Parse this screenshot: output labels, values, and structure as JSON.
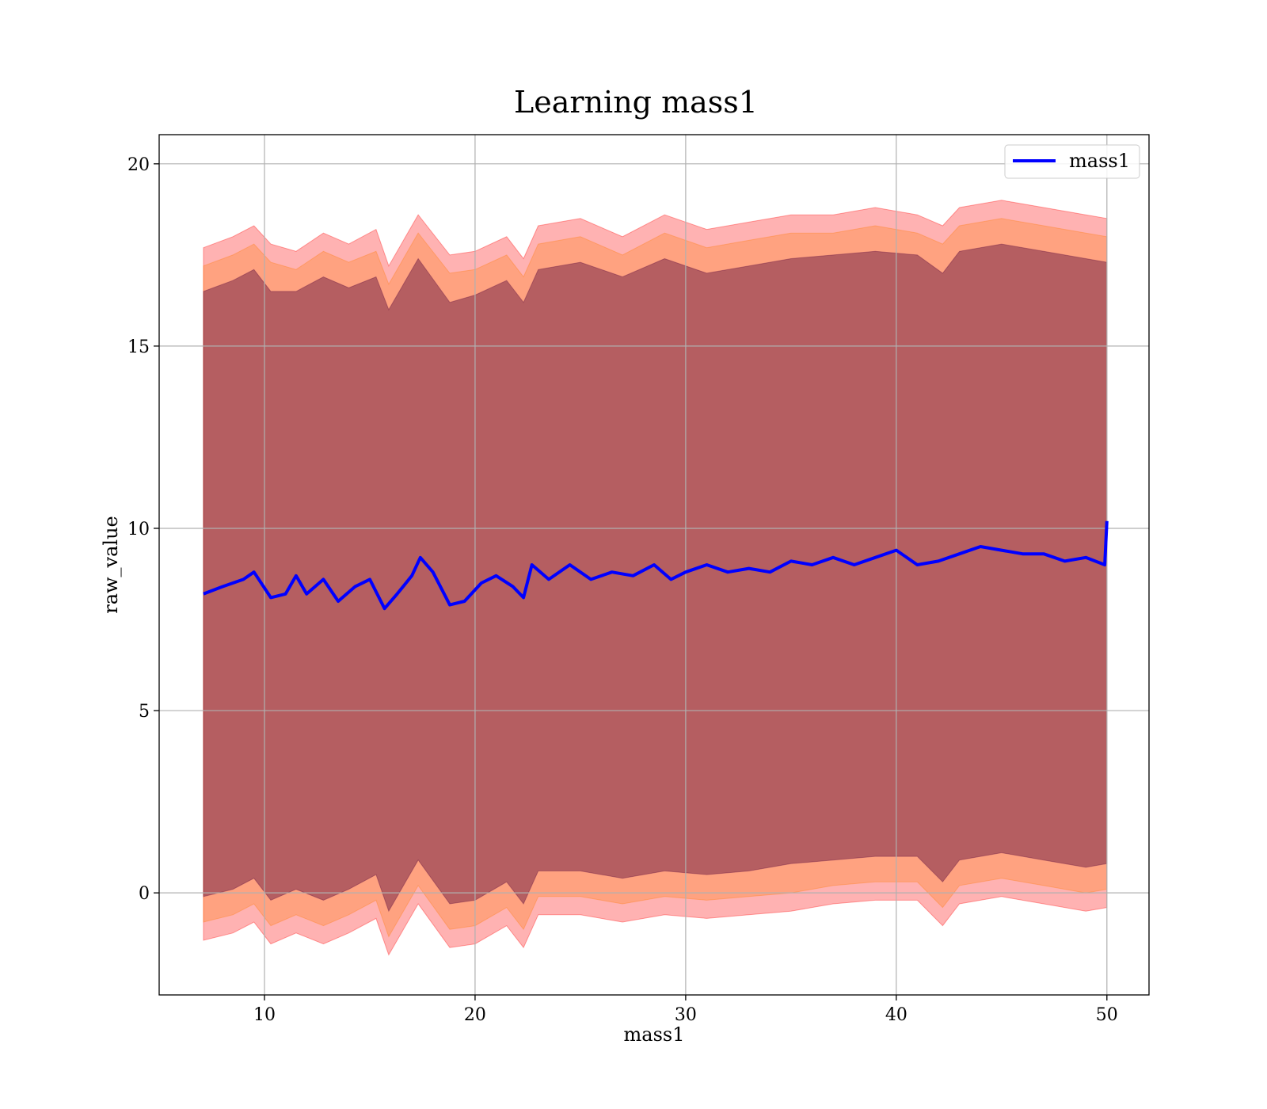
{
  "chart_data": {
    "type": "line",
    "title": "Learning mass1",
    "xlabel": "mass1",
    "ylabel": "raw_value",
    "xlim": [
      5,
      52
    ],
    "ylim": [
      -2.8,
      20.8
    ],
    "xticks": [
      10,
      20,
      30,
      40,
      50
    ],
    "yticks": [
      0,
      5,
      10,
      15,
      20
    ],
    "grid": true,
    "legend": {
      "position": "top-right"
    },
    "series": [
      {
        "name": "mass1",
        "color": "#0000ff",
        "x": [
          7.1,
          8.0,
          9.0,
          9.5,
          10.3,
          11.0,
          11.5,
          12.0,
          12.8,
          13.5,
          14.3,
          15.0,
          15.7,
          16.3,
          17.0,
          17.4,
          18.0,
          18.8,
          19.5,
          20.3,
          21.0,
          21.8,
          22.3,
          22.7,
          23.5,
          24.5,
          25.5,
          26.5,
          27.5,
          28.5,
          29.3,
          30.0,
          31.0,
          32.0,
          33.0,
          34.0,
          35.0,
          36.0,
          37.0,
          38.0,
          39.0,
          40.0,
          41.0,
          42.0,
          43.0,
          44.0,
          45.0,
          46.0,
          47.0,
          48.0,
          49.0,
          49.9,
          50.0
        ],
        "y": [
          8.2,
          8.4,
          8.6,
          8.8,
          8.1,
          8.2,
          8.7,
          8.2,
          8.6,
          8.0,
          8.4,
          8.6,
          7.8,
          8.2,
          8.7,
          9.2,
          8.8,
          7.9,
          8.0,
          8.5,
          8.7,
          8.4,
          8.1,
          9.0,
          8.6,
          9.0,
          8.6,
          8.8,
          8.7,
          9.0,
          8.6,
          8.8,
          9.0,
          8.8,
          8.9,
          8.8,
          9.1,
          9.0,
          9.2,
          9.0,
          9.2,
          9.4,
          9.0,
          9.1,
          9.3,
          9.5,
          9.4,
          9.3,
          9.3,
          9.1,
          9.2,
          9.0,
          10.2
        ]
      }
    ],
    "bands": [
      {
        "color": "#ff0000",
        "opacity": 0.3,
        "x": [
          7.1,
          8.5,
          9.5,
          10.3,
          11.5,
          12.8,
          14.0,
          15.3,
          15.9,
          17.3,
          18.8,
          20.0,
          21.5,
          22.3,
          23.0,
          25.0,
          27.0,
          29.0,
          31.0,
          33.0,
          35.0,
          37.0,
          39.0,
          41.0,
          42.2,
          43.0,
          45.0,
          47.0,
          49.0,
          50.0
        ],
        "upper": [
          17.7,
          18.0,
          18.3,
          17.8,
          17.6,
          18.1,
          17.8,
          18.2,
          17.2,
          18.6,
          17.5,
          17.6,
          18.0,
          17.4,
          18.3,
          18.5,
          18.0,
          18.6,
          18.2,
          18.4,
          18.6,
          18.6,
          18.8,
          18.6,
          18.3,
          18.8,
          19.0,
          18.8,
          18.6,
          18.5
        ],
        "lower": [
          -1.3,
          -1.1,
          -0.8,
          -1.4,
          -1.1,
          -1.4,
          -1.1,
          -0.7,
          -1.7,
          -0.3,
          -1.5,
          -1.4,
          -0.9,
          -1.5,
          -0.6,
          -0.6,
          -0.8,
          -0.6,
          -0.7,
          -0.6,
          -0.5,
          -0.3,
          -0.2,
          -0.2,
          -0.9,
          -0.3,
          -0.1,
          -0.3,
          -0.5,
          -0.4
        ]
      },
      {
        "color": "#ff7f0e",
        "opacity": 0.3,
        "x": [
          7.1,
          8.5,
          9.5,
          10.3,
          11.5,
          12.8,
          14.0,
          15.3,
          15.9,
          17.3,
          18.8,
          20.0,
          21.5,
          22.3,
          23.0,
          25.0,
          27.0,
          29.0,
          31.0,
          33.0,
          35.0,
          37.0,
          39.0,
          41.0,
          42.2,
          43.0,
          45.0,
          47.0,
          49.0,
          50.0
        ],
        "upper": [
          17.2,
          17.5,
          17.8,
          17.3,
          17.1,
          17.6,
          17.3,
          17.6,
          16.7,
          18.1,
          17.0,
          17.1,
          17.5,
          16.9,
          17.8,
          18.0,
          17.5,
          18.1,
          17.7,
          17.9,
          18.1,
          18.1,
          18.3,
          18.1,
          17.8,
          18.3,
          18.5,
          18.3,
          18.1,
          18.0
        ],
        "lower": [
          -0.8,
          -0.6,
          -0.3,
          -0.9,
          -0.6,
          -0.9,
          -0.6,
          -0.2,
          -1.2,
          0.2,
          -1.0,
          -0.9,
          -0.4,
          -1.0,
          -0.1,
          -0.1,
          -0.3,
          -0.1,
          -0.2,
          -0.1,
          0.0,
          0.2,
          0.3,
          0.3,
          -0.4,
          0.2,
          0.4,
          0.2,
          0.0,
          0.1
        ]
      },
      {
        "color": "#5a0a3c",
        "opacity": 0.45,
        "x": [
          7.1,
          8.5,
          9.5,
          10.3,
          11.5,
          12.8,
          14.0,
          15.3,
          15.9,
          17.3,
          18.8,
          20.0,
          21.5,
          22.3,
          23.0,
          25.0,
          27.0,
          29.0,
          31.0,
          33.0,
          35.0,
          37.0,
          39.0,
          41.0,
          42.2,
          43.0,
          45.0,
          47.0,
          49.0,
          50.0
        ],
        "upper": [
          16.5,
          16.8,
          17.1,
          16.5,
          16.5,
          16.9,
          16.6,
          16.9,
          16.0,
          17.4,
          16.2,
          16.4,
          16.8,
          16.2,
          17.1,
          17.3,
          16.9,
          17.4,
          17.0,
          17.2,
          17.4,
          17.5,
          17.6,
          17.5,
          17.0,
          17.6,
          17.8,
          17.6,
          17.4,
          17.3
        ],
        "lower": [
          -0.1,
          0.1,
          0.4,
          -0.2,
          0.1,
          -0.2,
          0.1,
          0.5,
          -0.5,
          0.9,
          -0.3,
          -0.2,
          0.3,
          -0.3,
          0.6,
          0.6,
          0.4,
          0.6,
          0.5,
          0.6,
          0.8,
          0.9,
          1.0,
          1.0,
          0.3,
          0.9,
          1.1,
          0.9,
          0.7,
          0.8
        ]
      }
    ]
  }
}
